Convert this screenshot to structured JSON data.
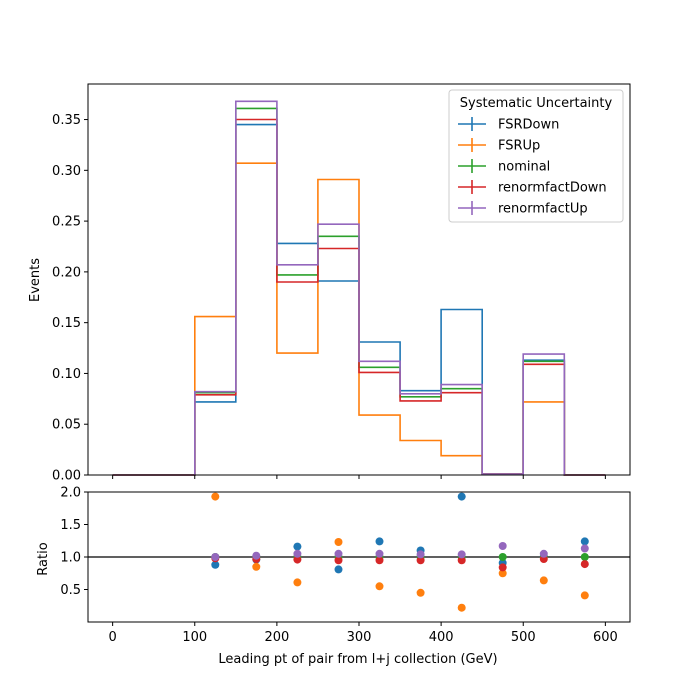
{
  "chart_data": {
    "type": "step",
    "xlabel": "Leading pt of pair from l+j collection (GeV)",
    "ylabel_top": "Events",
    "ylabel_bottom": "Ratio",
    "xlim": [
      -30,
      630
    ],
    "ylim_top": [
      0,
      0.385
    ],
    "ylim_bottom": [
      0.0,
      2.0
    ],
    "xticks": [
      0,
      100,
      200,
      300,
      400,
      500,
      600
    ],
    "xtick_labels": [
      "0",
      "100",
      "200",
      "300",
      "400",
      "500",
      "600"
    ],
    "yticks_top": [
      0.0,
      0.05,
      0.1,
      0.15,
      0.2,
      0.25,
      0.3,
      0.35
    ],
    "ytick_labels_top": [
      "0.00",
      "0.05",
      "0.10",
      "0.15",
      "0.20",
      "0.25",
      "0.30",
      "0.35"
    ],
    "yticks_bottom": [
      0.5,
      1.0,
      1.5,
      2.0
    ],
    "ytick_labels_bottom": [
      "0.5",
      "1.0",
      "1.5",
      "2.0"
    ],
    "bin_edges": [
      0,
      50,
      100,
      150,
      200,
      250,
      300,
      350,
      400,
      450,
      500,
      550,
      600
    ],
    "legend": {
      "title": "Systematic Uncertainty",
      "placement": "top-right"
    },
    "grid": false,
    "series": [
      {
        "name": "FSRDown",
        "color": "#1f77b4",
        "values": [
          0,
          0,
          0.072,
          0.345,
          0.228,
          0.191,
          0.131,
          0.083,
          0.163,
          0.001,
          0.113,
          0
        ],
        "ratio": [
          null,
          null,
          0.88,
          0.96,
          1.16,
          0.81,
          1.24,
          1.1,
          1.93,
          0.91,
          1.01,
          1.24
        ]
      },
      {
        "name": "FSRUp",
        "color": "#ff7f0e",
        "values": [
          0,
          0,
          0.156,
          0.307,
          0.12,
          0.291,
          0.059,
          0.034,
          0.019,
          0.001,
          0.072,
          0
        ],
        "ratio": [
          null,
          null,
          1.93,
          0.85,
          0.61,
          1.23,
          0.55,
          0.45,
          0.22,
          0.75,
          0.64,
          0.41
        ]
      },
      {
        "name": "nominal",
        "color": "#2ca02c",
        "values": [
          0,
          0,
          0.081,
          0.361,
          0.197,
          0.235,
          0.106,
          0.077,
          0.085,
          0.001,
          0.112,
          0
        ],
        "ratio": [
          null,
          null,
          1.0,
          1.0,
          1.0,
          1.0,
          1.0,
          1.0,
          1.0,
          1.0,
          1.0,
          1.0
        ]
      },
      {
        "name": "renormfactDown",
        "color": "#d62728",
        "values": [
          0,
          0,
          0.079,
          0.35,
          0.19,
          0.223,
          0.101,
          0.073,
          0.081,
          0.001,
          0.109,
          0
        ],
        "ratio": [
          null,
          null,
          0.98,
          0.97,
          0.96,
          0.95,
          0.95,
          0.95,
          0.95,
          0.84,
          0.97,
          0.89
        ]
      },
      {
        "name": "renormfactUp",
        "color": "#9467bd",
        "values": [
          0,
          0,
          0.082,
          0.368,
          0.207,
          0.247,
          0.112,
          0.08,
          0.089,
          0.001,
          0.119,
          0
        ],
        "ratio": [
          null,
          null,
          1.0,
          1.02,
          1.05,
          1.05,
          1.05,
          1.04,
          1.04,
          1.17,
          1.05,
          1.13
        ]
      }
    ]
  }
}
